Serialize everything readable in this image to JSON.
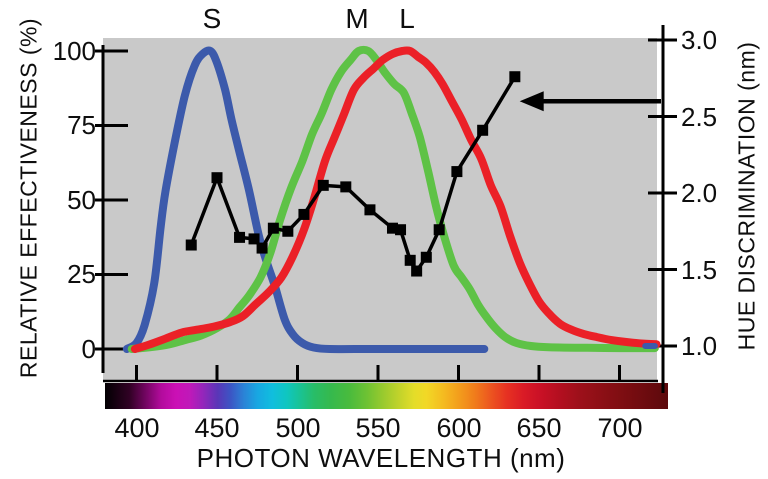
{
  "chart_data": {
    "type": "line",
    "description": "Relative spectral effectiveness of S, M and L cone photoreceptors overlaid with the hue discrimination function",
    "x_axis": {
      "label": "PHOTON WAVELENGTH (nm)",
      "ticks": [
        400,
        450,
        500,
        550,
        600,
        650,
        700
      ],
      "tick_labels": [
        "400",
        "450",
        "500",
        "550",
        "600",
        "650",
        "700"
      ],
      "range": [
        380,
        730
      ]
    },
    "y_left": {
      "label": "RELATIVE EFFECTIVENESS (%)",
      "ticks": [
        100,
        75,
        50,
        25,
        0
      ],
      "tick_labels": [
        "100",
        "75",
        "50",
        "25",
        "0"
      ],
      "range": [
        0,
        100
      ]
    },
    "y_right": {
      "label": "HUE DISCRIMINATION (nm)",
      "ticks": [
        3.0,
        2.5,
        2.0,
        1.5,
        1.0
      ],
      "tick_labels": [
        "3.0",
        "2.5",
        "2.0",
        "1.5",
        "1.0"
      ],
      "range": [
        1.0,
        3.0
      ]
    },
    "curve_labels": [
      {
        "text": "S",
        "nm": 447
      },
      {
        "text": "M",
        "nm": 537
      },
      {
        "text": "L",
        "nm": 568
      }
    ],
    "series": [
      {
        "name": "S cone relative effectiveness",
        "axis": "left",
        "color": "#3c5aab",
        "style": "smooth",
        "points": [
          [
            394,
            0
          ],
          [
            400,
            2
          ],
          [
            405,
            8
          ],
          [
            411,
            22
          ],
          [
            415,
            41
          ],
          [
            418,
            53
          ],
          [
            424,
            70
          ],
          [
            430,
            85
          ],
          [
            436,
            95
          ],
          [
            441,
            99
          ],
          [
            446,
            100
          ],
          [
            450,
            96
          ],
          [
            455,
            87
          ],
          [
            459,
            77
          ],
          [
            464,
            66
          ],
          [
            470,
            53
          ],
          [
            476,
            38
          ],
          [
            481,
            29
          ],
          [
            486,
            21
          ],
          [
            492,
            10
          ],
          [
            497,
            5
          ],
          [
            503,
            2
          ],
          [
            510,
            0.5
          ],
          [
            520,
            0
          ],
          [
            545,
            0
          ],
          [
            575,
            0
          ],
          [
            600,
            0
          ],
          [
            616,
            0
          ]
        ]
      },
      {
        "name": "M cone relative effectiveness",
        "axis": "left",
        "color": "#5ec246",
        "style": "smooth",
        "points": [
          [
            397,
            0
          ],
          [
            410,
            0.7
          ],
          [
            420,
            1.5
          ],
          [
            430,
            3
          ],
          [
            440,
            4.5
          ],
          [
            450,
            7
          ],
          [
            458,
            10
          ],
          [
            464,
            14
          ],
          [
            470,
            18
          ],
          [
            477,
            24
          ],
          [
            483,
            32
          ],
          [
            489,
            43
          ],
          [
            496,
            54
          ],
          [
            503,
            63
          ],
          [
            509,
            72
          ],
          [
            515,
            79
          ],
          [
            521,
            87
          ],
          [
            527,
            93
          ],
          [
            533,
            97
          ],
          [
            538,
            100
          ],
          [
            544,
            100
          ],
          [
            549,
            97
          ],
          [
            554,
            93
          ],
          [
            560,
            89
          ],
          [
            566,
            86
          ],
          [
            571,
            79
          ],
          [
            576,
            71
          ],
          [
            581,
            60
          ],
          [
            586,
            48
          ],
          [
            591,
            38
          ],
          [
            597,
            28
          ],
          [
            602,
            24
          ],
          [
            607,
            20
          ],
          [
            612,
            15
          ],
          [
            617,
            11
          ],
          [
            623,
            7
          ],
          [
            629,
            4
          ],
          [
            636,
            2
          ],
          [
            645,
            1
          ],
          [
            656,
            0.6
          ],
          [
            680,
            0.4
          ],
          [
            700,
            0.3
          ],
          [
            722,
            0.3
          ]
        ]
      },
      {
        "name": "L cone relative effectiveness",
        "axis": "left",
        "color": "#eb2027",
        "style": "smooth",
        "points": [
          [
            399,
            0
          ],
          [
            408,
            1.5
          ],
          [
            418,
            3.5
          ],
          [
            428,
            5.5
          ],
          [
            438,
            6.5
          ],
          [
            448,
            7.5
          ],
          [
            458,
            9
          ],
          [
            466,
            11
          ],
          [
            474,
            15
          ],
          [
            482,
            19
          ],
          [
            490,
            24
          ],
          [
            497,
            31
          ],
          [
            504,
            40
          ],
          [
            510,
            50
          ],
          [
            517,
            63
          ],
          [
            523,
            71
          ],
          [
            529,
            79
          ],
          [
            535,
            87
          ],
          [
            541,
            91
          ],
          [
            547,
            94
          ],
          [
            553,
            97
          ],
          [
            559,
            99
          ],
          [
            565,
            100
          ],
          [
            570,
            100
          ],
          [
            575,
            98
          ],
          [
            580,
            96
          ],
          [
            585,
            93
          ],
          [
            590,
            89
          ],
          [
            596,
            83
          ],
          [
            602,
            77
          ],
          [
            608,
            70
          ],
          [
            614,
            64
          ],
          [
            620,
            55
          ],
          [
            626,
            48
          ],
          [
            632,
            38
          ],
          [
            638,
            29
          ],
          [
            644,
            22
          ],
          [
            650,
            16
          ],
          [
            656,
            12
          ],
          [
            663,
            8.5
          ],
          [
            670,
            6.5
          ],
          [
            678,
            5
          ],
          [
            686,
            4
          ],
          [
            695,
            3
          ],
          [
            705,
            2.3
          ],
          [
            715,
            1.8
          ],
          [
            723,
            1.6
          ]
        ]
      },
      {
        "name": "Hue discrimination",
        "axis": "right",
        "color": "#000000",
        "style": "polyline",
        "marker": "square",
        "points": [
          [
            434,
            1.66
          ],
          [
            450,
            2.1
          ],
          [
            464,
            1.71
          ],
          [
            473,
            1.7
          ],
          [
            478,
            1.64
          ],
          [
            485,
            1.77
          ],
          [
            494,
            1.75
          ],
          [
            504,
            1.86
          ],
          [
            516,
            2.05
          ],
          [
            530,
            2.04
          ],
          [
            545,
            1.89
          ],
          [
            559,
            1.77
          ],
          [
            564,
            1.76
          ],
          [
            570,
            1.56
          ],
          [
            574,
            1.49
          ],
          [
            580,
            1.58
          ],
          [
            588,
            1.76
          ],
          [
            599,
            2.14
          ],
          [
            615,
            2.41
          ],
          [
            635,
            2.76
          ]
        ]
      }
    ],
    "annotations": {
      "arrow_to_hue_curve": {
        "axis": "right",
        "value": 2.6,
        "tip_nm": 638,
        "from": "right axis"
      },
      "blue_tail_mark": {
        "nm": [
          716,
          722
        ],
        "pct": 1
      }
    },
    "spectrum_bar": {
      "nm_range": [
        380,
        730
      ],
      "stops": [
        {
          "nm": 380,
          "color": "#020002"
        },
        {
          "nm": 395,
          "color": "#300124"
        },
        {
          "nm": 405,
          "color": "#70055f"
        },
        {
          "nm": 415,
          "color": "#b30b9d"
        },
        {
          "nm": 424,
          "color": "#cb10b5"
        },
        {
          "nm": 433,
          "color": "#bf19b9"
        },
        {
          "nm": 441,
          "color": "#9426bb"
        },
        {
          "nm": 450,
          "color": "#5a36b7"
        },
        {
          "nm": 458,
          "color": "#3c55c4"
        },
        {
          "nm": 466,
          "color": "#2b82d6"
        },
        {
          "nm": 475,
          "color": "#18a7e2"
        },
        {
          "nm": 484,
          "color": "#10bede"
        },
        {
          "nm": 493,
          "color": "#0fc6c0"
        },
        {
          "nm": 501,
          "color": "#19c395"
        },
        {
          "nm": 510,
          "color": "#28bd68"
        },
        {
          "nm": 520,
          "color": "#35b94e"
        },
        {
          "nm": 532,
          "color": "#49bb3d"
        },
        {
          "nm": 543,
          "color": "#6fc233"
        },
        {
          "nm": 553,
          "color": "#99ca2e"
        },
        {
          "nm": 563,
          "color": "#c2d32b"
        },
        {
          "nm": 572,
          "color": "#e4dd29"
        },
        {
          "nm": 580,
          "color": "#f2d826"
        },
        {
          "nm": 590,
          "color": "#f4bc20"
        },
        {
          "nm": 600,
          "color": "#f39d1c"
        },
        {
          "nm": 610,
          "color": "#f07c1b"
        },
        {
          "nm": 620,
          "color": "#ec5420"
        },
        {
          "nm": 630,
          "color": "#e63122"
        },
        {
          "nm": 640,
          "color": "#da1b26"
        },
        {
          "nm": 650,
          "color": "#cb1126"
        },
        {
          "nm": 662,
          "color": "#b40f20"
        },
        {
          "nm": 675,
          "color": "#9d101a"
        },
        {
          "nm": 690,
          "color": "#8b0f15"
        },
        {
          "nm": 705,
          "color": "#7a0d11"
        },
        {
          "nm": 730,
          "color": "#5c090c"
        }
      ]
    },
    "colors": {
      "plot_background": "#c9c9c9",
      "s_cone": "#3c5aab",
      "m_cone": "#5ec246",
      "l_cone": "#eb2027",
      "hue_curve": "#000000"
    }
  }
}
